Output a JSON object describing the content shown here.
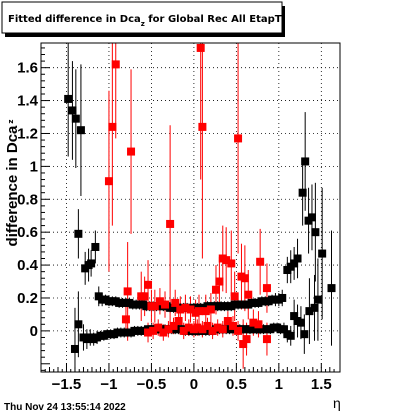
{
  "title": {
    "prefix": "Fitted difference in Dca",
    "subscript": "z",
    "suffix": " for Global Rec All EtapT"
  },
  "footer": "Thu Nov 24 13:55:14 2022",
  "colors": {
    "series_black": "#000000",
    "series_red": "#ff0000"
  },
  "chart_data": {
    "type": "scatter",
    "title": "Fitted difference in Dca_z for Global Rec All EtapT",
    "xlabel": "η",
    "ylabel": "difference in Dca",
    "ylabel_subscript": "z",
    "xlim": [
      -1.8,
      1.72
    ],
    "ylim": [
      -0.25,
      1.75
    ],
    "grid": true,
    "x_ticks": [
      -1.5,
      -1,
      -0.5,
      0,
      0.5,
      1,
      1.5
    ],
    "x_tick_labels": [
      "−1.5",
      "−1",
      "−0.5",
      "0",
      "0.5",
      "1",
      "1.5"
    ],
    "y_ticks": [
      0,
      0.2,
      0.4,
      0.6,
      0.8,
      1,
      1.2,
      1.4,
      1.6
    ],
    "y_tick_labels": [
      "0",
      "0.2",
      "0.4",
      "0.6",
      "0.8",
      "1",
      "1.2",
      "1.4",
      "1.6"
    ],
    "series": [
      {
        "color": "#000000",
        "marker": "square",
        "points": [
          [
            -1.48,
            1.41,
            0.35
          ],
          [
            -1.43,
            1.34,
            0.3
          ],
          [
            -1.39,
            1.29,
            0.3
          ],
          [
            -1.33,
            1.22,
            0.4
          ],
          [
            -1.36,
            0.59,
            0.15
          ],
          [
            -1.28,
            0.38,
            0.1
          ],
          [
            -1.24,
            0.4,
            0.1
          ],
          [
            -1.21,
            0.41,
            0.08
          ],
          [
            -1.16,
            0.51,
            0.1
          ],
          [
            -1.12,
            0.21,
            0.06
          ],
          [
            -1.08,
            0.19,
            0.04
          ],
          [
            -1.04,
            0.19,
            0.03
          ],
          [
            -1.0,
            0.18,
            0.03
          ],
          [
            -0.96,
            0.18,
            0.03
          ],
          [
            -0.92,
            0.18,
            0.03
          ],
          [
            -0.88,
            0.17,
            0.03
          ],
          [
            -0.84,
            0.17,
            0.03
          ],
          [
            -0.8,
            0.17,
            0.03
          ],
          [
            -0.76,
            0.17,
            0.03
          ],
          [
            -0.72,
            0.16,
            0.03
          ],
          [
            -0.68,
            0.16,
            0.03
          ],
          [
            -0.64,
            0.16,
            0.03
          ],
          [
            -0.6,
            0.16,
            0.03
          ],
          [
            -0.56,
            0.15,
            0.03
          ],
          [
            -0.52,
            0.15,
            0.03
          ],
          [
            -0.48,
            0.15,
            0.03
          ],
          [
            -0.44,
            0.15,
            0.03
          ],
          [
            -0.4,
            0.15,
            0.03
          ],
          [
            -0.36,
            0.15,
            0.03
          ],
          [
            -0.32,
            0.15,
            0.03
          ],
          [
            -0.28,
            0.14,
            0.03
          ],
          [
            -0.24,
            0.14,
            0.03
          ],
          [
            -0.2,
            0.14,
            0.03
          ],
          [
            -0.16,
            0.14,
            0.03
          ],
          [
            -0.12,
            0.14,
            0.03
          ],
          [
            -0.08,
            0.14,
            0.03
          ],
          [
            -0.04,
            0.14,
            0.03
          ],
          [
            0.0,
            0.14,
            0.03
          ],
          [
            0.04,
            0.14,
            0.03
          ],
          [
            0.08,
            0.14,
            0.03
          ],
          [
            0.12,
            0.14,
            0.03
          ],
          [
            0.16,
            0.15,
            0.03
          ],
          [
            0.2,
            0.15,
            0.03
          ],
          [
            0.24,
            0.15,
            0.03
          ],
          [
            0.28,
            0.15,
            0.03
          ],
          [
            0.32,
            0.15,
            0.03
          ],
          [
            0.36,
            0.15,
            0.03
          ],
          [
            0.4,
            0.15,
            0.03
          ],
          [
            0.44,
            0.15,
            0.03
          ],
          [
            0.48,
            0.16,
            0.03
          ],
          [
            0.52,
            0.16,
            0.03
          ],
          [
            0.56,
            0.16,
            0.03
          ],
          [
            0.6,
            0.16,
            0.03
          ],
          [
            0.64,
            0.16,
            0.03
          ],
          [
            0.68,
            0.17,
            0.03
          ],
          [
            0.72,
            0.17,
            0.03
          ],
          [
            0.76,
            0.17,
            0.03
          ],
          [
            0.8,
            0.18,
            0.03
          ],
          [
            0.84,
            0.18,
            0.03
          ],
          [
            0.88,
            0.18,
            0.03
          ],
          [
            0.92,
            0.19,
            0.03
          ],
          [
            0.96,
            0.19,
            0.04
          ],
          [
            1.0,
            0.19,
            0.04
          ],
          [
            1.04,
            0.2,
            0.05
          ],
          [
            1.1,
            0.37,
            0.08
          ],
          [
            1.14,
            0.39,
            0.1
          ],
          [
            1.18,
            0.41,
            0.1
          ],
          [
            1.22,
            0.44,
            0.12
          ],
          [
            1.28,
            0.84,
            0.2
          ],
          [
            1.31,
            1.03,
            0.3
          ],
          [
            1.35,
            0.67,
            0.2
          ],
          [
            1.39,
            0.69,
            0.2
          ],
          [
            1.43,
            0.6,
            0.3
          ],
          [
            -1.4,
            -0.11,
            0.25
          ],
          [
            -1.36,
            0.04,
            0.2
          ],
          [
            -1.3,
            -0.04,
            0.08
          ],
          [
            -1.26,
            -0.05,
            0.06
          ],
          [
            -1.22,
            -0.04,
            0.05
          ],
          [
            -1.18,
            -0.05,
            0.04
          ],
          [
            -1.14,
            -0.04,
            0.04
          ],
          [
            -1.1,
            -0.03,
            0.03
          ],
          [
            -1.06,
            -0.03,
            0.03
          ],
          [
            -1.02,
            -0.02,
            0.03
          ],
          [
            -0.98,
            -0.02,
            0.03
          ],
          [
            -0.94,
            -0.02,
            0.03
          ],
          [
            -0.9,
            -0.01,
            0.03
          ],
          [
            -0.86,
            -0.01,
            0.03
          ],
          [
            -0.82,
            -0.01,
            0.03
          ],
          [
            -0.78,
            -0.01,
            0.03
          ],
          [
            -0.74,
            -0.01,
            0.03
          ],
          [
            -0.7,
            0.0,
            0.03
          ],
          [
            -0.66,
            0.0,
            0.03
          ],
          [
            -0.62,
            0.0,
            0.03
          ],
          [
            -0.58,
            0.0,
            0.03
          ],
          [
            -0.54,
            0.01,
            0.03
          ],
          [
            -0.5,
            0.01,
            0.03
          ],
          [
            -0.46,
            0.01,
            0.03
          ],
          [
            -0.42,
            0.01,
            0.03
          ],
          [
            -0.38,
            0.01,
            0.03
          ],
          [
            -0.34,
            0.01,
            0.03
          ],
          [
            -0.3,
            0.01,
            0.03
          ],
          [
            -0.26,
            0.01,
            0.03
          ],
          [
            -0.22,
            0.01,
            0.03
          ],
          [
            -0.18,
            0.01,
            0.03
          ],
          [
            -0.14,
            0.01,
            0.03
          ],
          [
            -0.1,
            0.0,
            0.03
          ],
          [
            -0.06,
            0.0,
            0.03
          ],
          [
            -0.02,
            0.0,
            0.03
          ],
          [
            0.02,
            0.0,
            0.03
          ],
          [
            0.06,
            0.0,
            0.03
          ],
          [
            0.1,
            0.0,
            0.03
          ],
          [
            0.14,
            0.0,
            0.03
          ],
          [
            0.18,
            0.0,
            0.03
          ],
          [
            0.22,
            0.0,
            0.03
          ],
          [
            0.26,
            0.01,
            0.03
          ],
          [
            0.3,
            0.01,
            0.03
          ],
          [
            0.34,
            0.01,
            0.03
          ],
          [
            0.38,
            0.01,
            0.03
          ],
          [
            0.42,
            0.01,
            0.03
          ],
          [
            0.46,
            0.01,
            0.03
          ],
          [
            0.5,
            0.01,
            0.03
          ],
          [
            0.54,
            0.01,
            0.03
          ],
          [
            0.58,
            0.01,
            0.03
          ],
          [
            0.62,
            0.01,
            0.03
          ],
          [
            0.66,
            0.01,
            0.03
          ],
          [
            0.7,
            0.01,
            0.03
          ],
          [
            0.74,
            0.01,
            0.03
          ],
          [
            0.78,
            0.01,
            0.03
          ],
          [
            0.82,
            0.01,
            0.03
          ],
          [
            0.86,
            0.01,
            0.03
          ],
          [
            0.9,
            0.01,
            0.03
          ],
          [
            0.94,
            0.02,
            0.03
          ],
          [
            0.98,
            0.02,
            0.03
          ],
          [
            1.02,
            0.01,
            0.03
          ],
          [
            1.06,
            0.01,
            0.04
          ],
          [
            1.1,
            -0.02,
            0.05
          ],
          [
            1.14,
            -0.03,
            0.06
          ],
          [
            1.18,
            0.09,
            0.1
          ],
          [
            1.22,
            0.06,
            0.1
          ],
          [
            1.26,
            0.05,
            0.1
          ],
          [
            1.3,
            -0.02,
            0.12
          ],
          [
            1.36,
            0.12,
            0.2
          ],
          [
            1.42,
            0.14,
            0.2
          ],
          [
            1.46,
            0.19,
            0.25
          ],
          [
            1.51,
            0.47,
            0.4
          ],
          [
            1.62,
            0.26,
            0.35
          ]
        ]
      },
      {
        "color": "#ff0000",
        "marker": "square",
        "points": [
          [
            -1.0,
            0.91,
            0.55
          ],
          [
            -0.96,
            1.24,
            0.6
          ],
          [
            -0.92,
            1.62,
            0.45
          ],
          [
            -0.74,
            1.09,
            0.5
          ],
          [
            -0.78,
            0.24,
            0.3
          ],
          [
            -0.62,
            0.21,
            0.15
          ],
          [
            -0.58,
            0.21,
            0.12
          ],
          [
            -0.54,
            0.28,
            0.15
          ],
          [
            -0.5,
            0.15,
            0.1
          ],
          [
            -0.46,
            0.15,
            0.1
          ],
          [
            -0.4,
            0.18,
            0.08
          ],
          [
            -0.34,
            0.16,
            0.08
          ],
          [
            -0.28,
            0.65,
            0.6
          ],
          [
            -0.22,
            0.17,
            0.08
          ],
          [
            -0.16,
            0.13,
            0.08
          ],
          [
            -0.1,
            0.14,
            0.08
          ],
          [
            -0.04,
            0.13,
            0.08
          ],
          [
            0.02,
            0.11,
            0.08
          ],
          [
            0.06,
            0.12,
            0.1
          ],
          [
            0.08,
            1.72,
            0.8
          ],
          [
            0.1,
            1.24,
            0.8
          ],
          [
            0.14,
            0.12,
            0.1
          ],
          [
            0.2,
            0.13,
            0.1
          ],
          [
            0.26,
            0.25,
            0.15
          ],
          [
            0.3,
            0.3,
            0.15
          ],
          [
            0.34,
            0.44,
            0.2
          ],
          [
            0.38,
            0.43,
            0.2
          ],
          [
            0.44,
            0.41,
            0.2
          ],
          [
            0.48,
            0.21,
            0.15
          ],
          [
            0.52,
            1.17,
            0.7
          ],
          [
            0.56,
            0.33,
            0.2
          ],
          [
            0.6,
            0.32,
            0.2
          ],
          [
            0.64,
            0.22,
            0.15
          ],
          [
            0.78,
            0.42,
            0.2
          ],
          [
            0.86,
            0.26,
            0.15
          ],
          [
            -0.8,
            0.07,
            0.1
          ],
          [
            -0.54,
            -0.01,
            0.06
          ],
          [
            -0.48,
            0.0,
            0.05
          ],
          [
            -0.42,
            0.02,
            0.05
          ],
          [
            -0.36,
            -0.01,
            0.05
          ],
          [
            -0.3,
            0.01,
            0.05
          ],
          [
            -0.24,
            0.03,
            0.05
          ],
          [
            -0.18,
            0.06,
            0.06
          ],
          [
            -0.12,
            0.0,
            0.05
          ],
          [
            -0.06,
            0.02,
            0.05
          ],
          [
            0.0,
            0.01,
            0.05
          ],
          [
            0.04,
            0.02,
            0.05
          ],
          [
            0.1,
            0.01,
            0.05
          ],
          [
            0.16,
            0.03,
            0.05
          ],
          [
            0.22,
            0.0,
            0.05
          ],
          [
            0.28,
            0.02,
            0.05
          ],
          [
            0.34,
            0.01,
            0.05
          ],
          [
            0.4,
            0.06,
            0.06
          ],
          [
            0.46,
            0.03,
            0.06
          ],
          [
            0.52,
            0.0,
            0.06
          ],
          [
            0.58,
            -0.08,
            0.15
          ],
          [
            0.62,
            -0.05,
            0.1
          ],
          [
            0.7,
            0.05,
            0.08
          ],
          [
            0.76,
            0.04,
            0.08
          ],
          [
            0.86,
            -0.05,
            0.1
          ]
        ]
      }
    ]
  }
}
